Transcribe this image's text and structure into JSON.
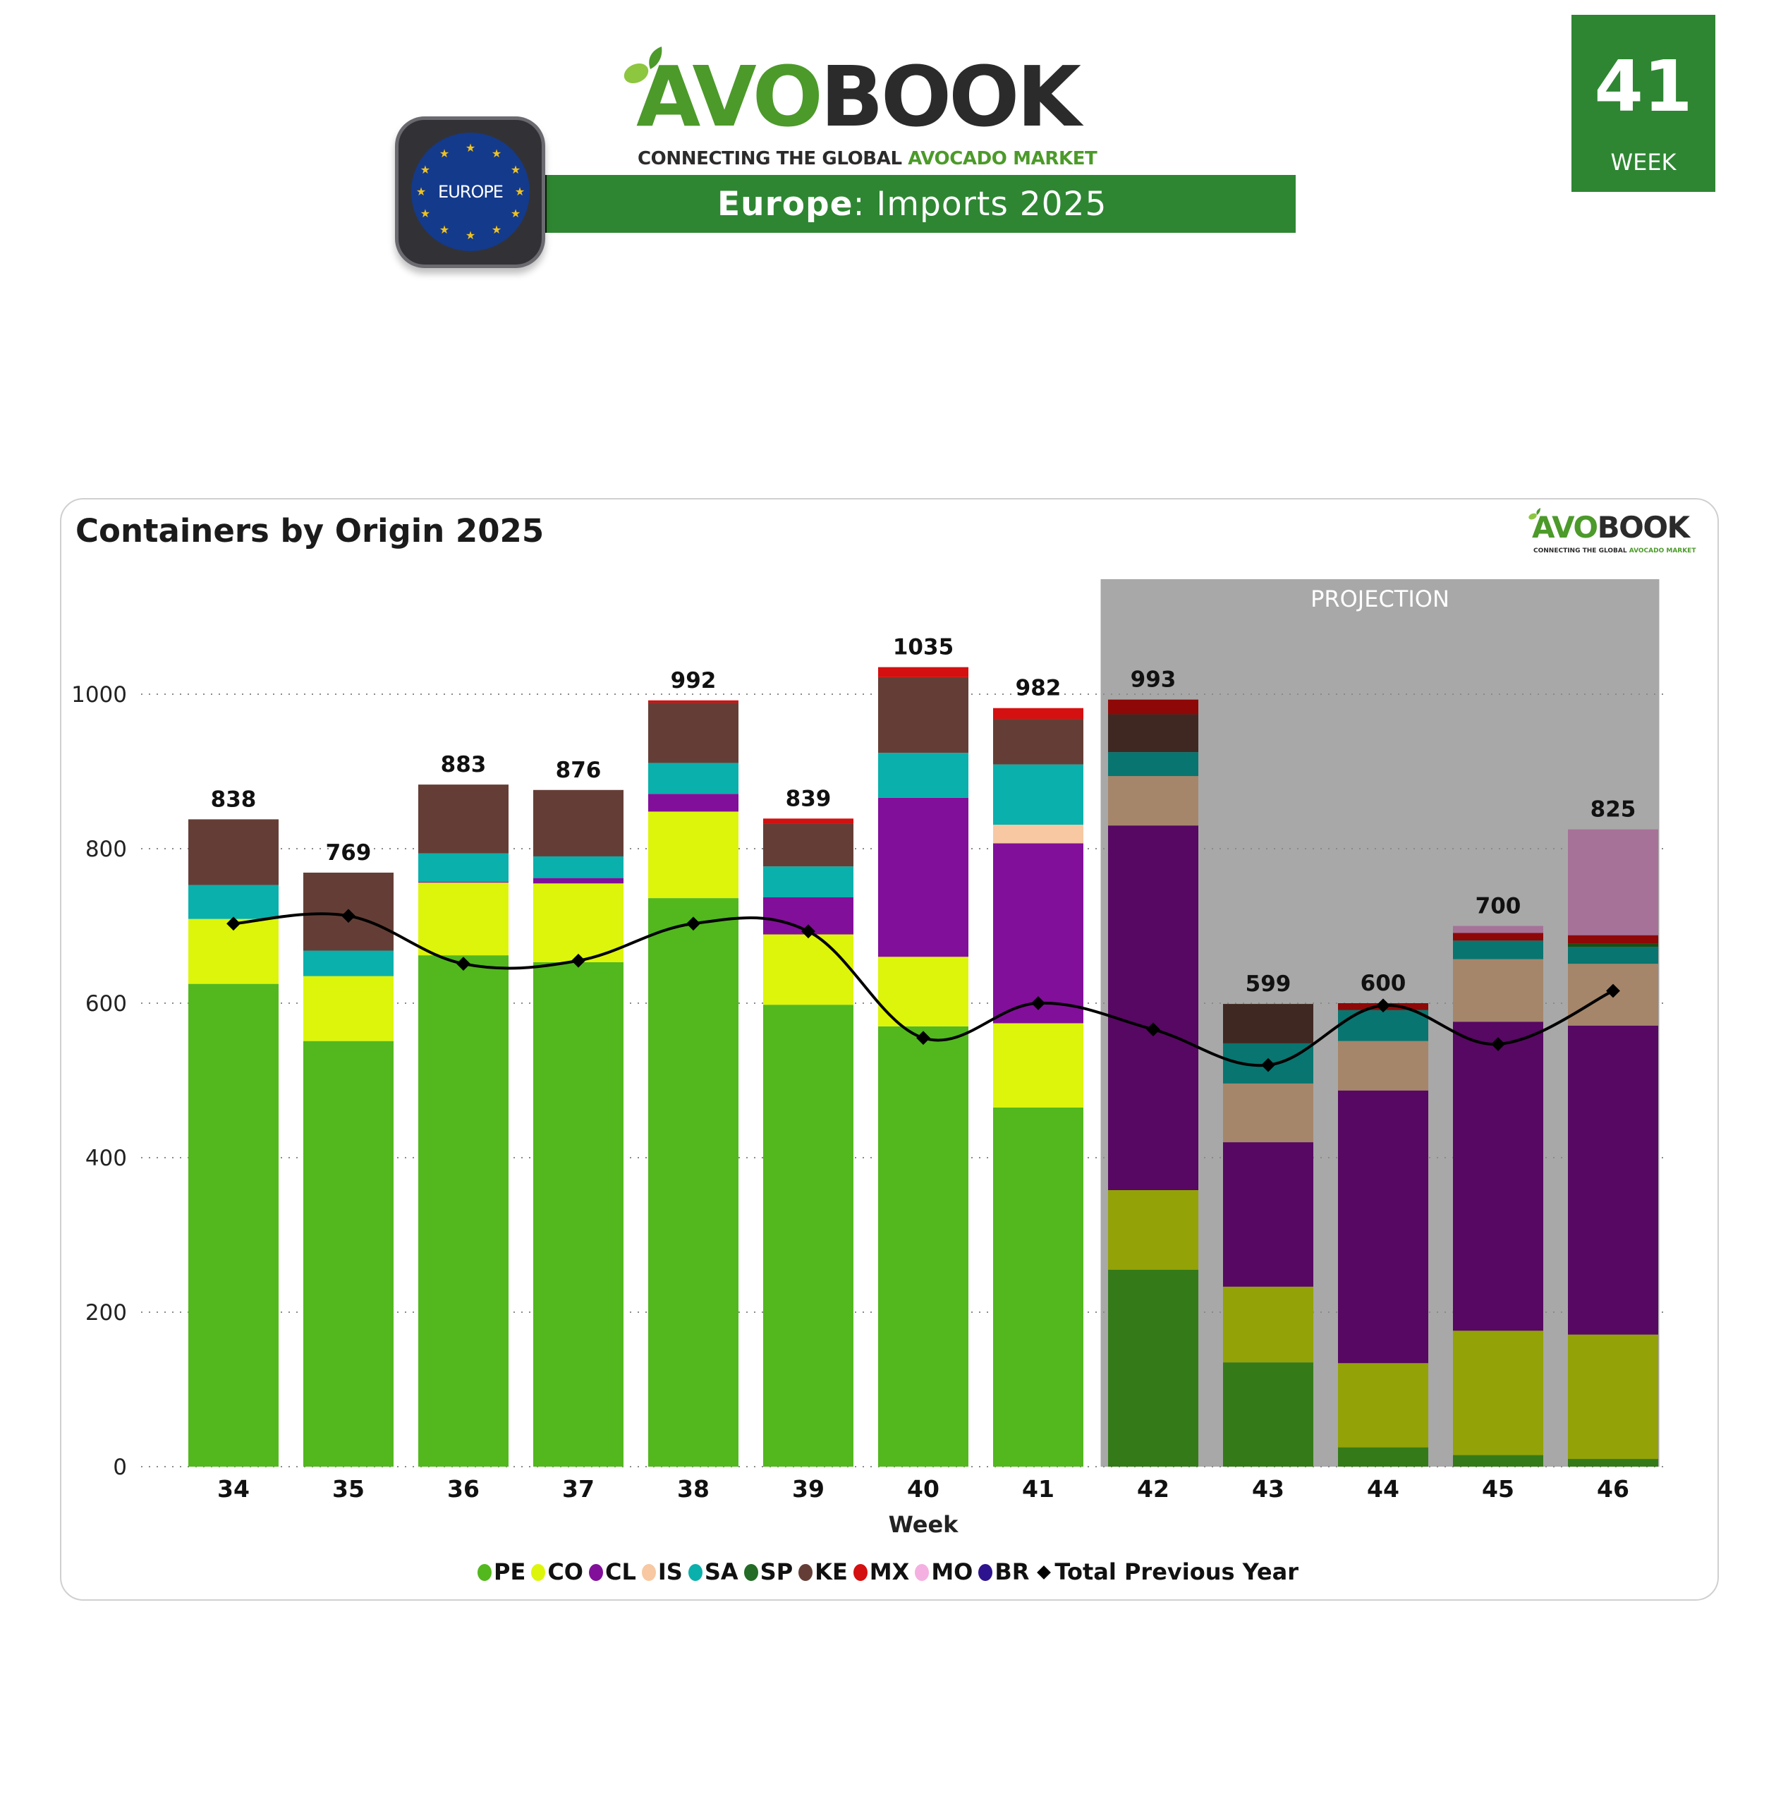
{
  "header": {
    "brand_avo": "AVO",
    "brand_book": "BOOK",
    "tagline_dark": "CONNECTING THE GLOBAL ",
    "tagline_green": "AVOCADO MARKET",
    "region_badge": "EUROPE",
    "banner_region": "Europe",
    "banner_rest": ": Imports 2025",
    "week_number": "41",
    "week_label": "WEEK"
  },
  "card": {
    "title": "Containers by Origin 2025",
    "mini_logo_avo": "AVO",
    "mini_logo_book": "BOOK",
    "mini_tagline_dark": "CONNECTING THE GLOBAL ",
    "mini_tagline_green": "AVOCADO MARKET"
  },
  "colors": {
    "brand_green": "#2E8632",
    "projection_bg": "#A8A8A8"
  },
  "chart_data": {
    "type": "bar",
    "stacked": true,
    "title": "Containers by Origin 2025",
    "xlabel": "Week",
    "ylabel": "",
    "ylim": [
      0,
      1100
    ],
    "yticks": [
      0,
      200,
      400,
      600,
      800,
      1000
    ],
    "grid": "horizontal-dotted",
    "legend_position": "bottom",
    "categories": [
      "34",
      "35",
      "36",
      "37",
      "38",
      "39",
      "40",
      "41",
      "42",
      "43",
      "44",
      "45",
      "46"
    ],
    "projection": {
      "label": "PROJECTION",
      "from": "42",
      "to": "46"
    },
    "totals": [
      838,
      769,
      883,
      876,
      992,
      839,
      1035,
      982,
      993,
      599,
      600,
      700,
      825
    ],
    "series": [
      {
        "name": "PE",
        "color": "#52B81E",
        "projection_color": "#357A18",
        "values": [
          625,
          551,
          662,
          653,
          736,
          598,
          570,
          465,
          255,
          135,
          25,
          15,
          10
        ]
      },
      {
        "name": "CO",
        "color": "#DDF50A",
        "projection_color": "#93A206",
        "values": [
          84,
          84,
          94,
          102,
          112,
          91,
          90,
          109,
          103,
          98,
          109,
          161,
          161
        ]
      },
      {
        "name": "CL",
        "color": "#820F9A",
        "projection_color": "#560862",
        "values": [
          0,
          0,
          1,
          7,
          23,
          48,
          206,
          233,
          472,
          187,
          353,
          400,
          400
        ]
      },
      {
        "name": "IS",
        "color": "#F7C8A2",
        "projection_color": "#A5866A",
        "values": [
          0,
          0,
          0,
          0,
          0,
          0,
          0,
          24,
          64,
          76,
          64,
          81,
          80
        ]
      },
      {
        "name": "SA",
        "color": "#0AB0AC",
        "projection_color": "#087570",
        "values": [
          44,
          33,
          37,
          28,
          40,
          40,
          58,
          78,
          31,
          52,
          40,
          24,
          22
        ]
      },
      {
        "name": "SP",
        "color": "#236B26",
        "projection_color": "#1A4D14",
        "values": [
          0,
          0,
          0,
          0,
          0,
          0,
          0,
          0,
          0,
          0,
          0,
          0,
          4
        ]
      },
      {
        "name": "KE",
        "color": "#643E36",
        "projection_color": "#402822",
        "values": [
          85,
          101,
          89,
          86,
          78,
          55,
          98,
          59,
          49,
          51,
          0,
          0,
          0
        ]
      },
      {
        "name": "MX",
        "color": "#D41010",
        "projection_color": "#8E0808",
        "values": [
          0,
          0,
          0,
          0,
          3,
          7,
          13,
          14,
          19,
          0,
          9,
          10,
          11
        ]
      },
      {
        "name": "MO",
        "color": "#F4B0E0",
        "projection_color": "#A67298",
        "values": [
          0,
          0,
          0,
          0,
          0,
          0,
          0,
          0,
          0,
          0,
          0,
          9,
          137
        ]
      },
      {
        "name": "BR",
        "color": "#2E138E",
        "projection_color": "#1F0D60",
        "values": [
          0,
          0,
          0,
          0,
          0,
          0,
          0,
          0,
          0,
          0,
          0,
          0,
          0
        ]
      }
    ],
    "line": {
      "name": "Total Previous Year",
      "color": "#000000",
      "marker": "diamond",
      "values": [
        703,
        713,
        651,
        655,
        703,
        693,
        555,
        600,
        566,
        520,
        597,
        547,
        616
      ]
    }
  }
}
